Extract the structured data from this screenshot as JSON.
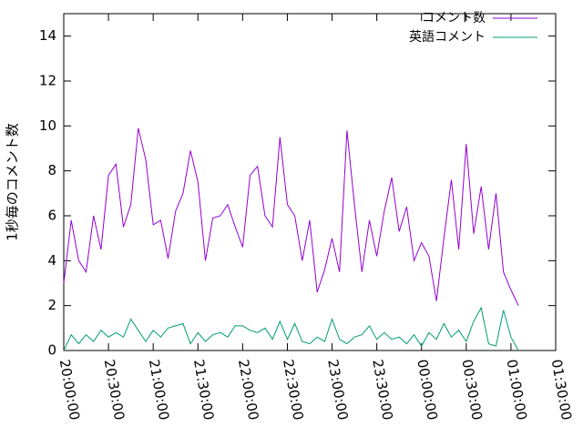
{
  "chart_data": {
    "type": "line",
    "ylabel": "1秒毎のコメント数",
    "x": [
      "20:00:00",
      "20:05:00",
      "20:10:00",
      "20:15:00",
      "20:20:00",
      "20:25:00",
      "20:30:00",
      "20:35:00",
      "20:40:00",
      "20:45:00",
      "20:50:00",
      "20:55:00",
      "21:00:00",
      "21:05:00",
      "21:10:00",
      "21:15:00",
      "21:20:00",
      "21:25:00",
      "21:30:00",
      "21:35:00",
      "21:40:00",
      "21:45:00",
      "21:50:00",
      "21:55:00",
      "22:00:00",
      "22:05:00",
      "22:10:00",
      "22:15:00",
      "22:20:00",
      "22:25:00",
      "22:30:00",
      "22:35:00",
      "22:40:00",
      "22:45:00",
      "22:50:00",
      "22:55:00",
      "23:00:00",
      "23:05:00",
      "23:10:00",
      "23:15:00",
      "23:20:00",
      "23:25:00",
      "23:30:00",
      "23:35:00",
      "23:40:00",
      "23:45:00",
      "23:50:00",
      "23:55:00",
      "00:00:00",
      "00:05:00",
      "00:10:00",
      "00:15:00",
      "00:20:00",
      "00:25:00",
      "00:30:00",
      "00:35:00",
      "00:40:00",
      "00:45:00",
      "00:50:00",
      "00:55:00",
      "01:00:00",
      "01:05:00"
    ],
    "series": [
      {
        "name": "コメント数",
        "color": "#9400d3",
        "values": [
          3.0,
          5.8,
          4.0,
          3.5,
          6.0,
          4.5,
          7.8,
          8.3,
          5.5,
          6.5,
          9.9,
          8.5,
          5.6,
          5.8,
          4.1,
          6.2,
          7.0,
          8.9,
          7.5,
          4.0,
          5.9,
          6.0,
          6.5,
          5.5,
          4.6,
          7.8,
          8.2,
          6.0,
          5.5,
          9.5,
          6.5,
          6.0,
          4.0,
          5.8,
          2.6,
          3.6,
          5.0,
          3.5,
          9.8,
          6.5,
          3.5,
          5.8,
          4.2,
          6.2,
          7.7,
          5.3,
          6.4,
          4.0,
          4.8,
          4.2,
          2.2,
          5.0,
          7.6,
          4.5,
          9.2,
          5.2,
          7.3,
          4.5,
          7.0,
          3.5,
          2.7,
          2.0
        ]
      },
      {
        "name": "英語コメント",
        "color": "#009e73",
        "values": [
          0.0,
          0.7,
          0.3,
          0.7,
          0.4,
          0.9,
          0.6,
          0.8,
          0.6,
          1.4,
          0.9,
          0.4,
          0.9,
          0.6,
          1.0,
          1.1,
          1.2,
          0.3,
          0.8,
          0.4,
          0.7,
          0.8,
          0.6,
          1.1,
          1.1,
          0.9,
          0.8,
          1.0,
          0.5,
          1.3,
          0.5,
          1.2,
          0.4,
          0.3,
          0.6,
          0.4,
          1.4,
          0.5,
          0.3,
          0.6,
          0.7,
          1.1,
          0.5,
          0.8,
          0.5,
          0.6,
          0.3,
          0.7,
          0.2,
          0.8,
          0.5,
          1.2,
          0.6,
          0.9,
          0.4,
          1.3,
          1.9,
          0.3,
          0.2,
          1.8,
          0.6,
          0.0
        ]
      }
    ],
    "xlim": [
      "20:00:00",
      "01:30:00"
    ],
    "xticks": [
      "20:00:00",
      "20:30:00",
      "21:00:00",
      "21:30:00",
      "22:00:00",
      "22:30:00",
      "23:00:00",
      "23:30:00",
      "00:00:00",
      "00:30:00",
      "01:00:00",
      "01:30:00"
    ],
    "ylim": [
      0,
      15
    ],
    "yticks": [
      0,
      2,
      4,
      6,
      8,
      10,
      12,
      14
    ],
    "legend": "top-right"
  }
}
